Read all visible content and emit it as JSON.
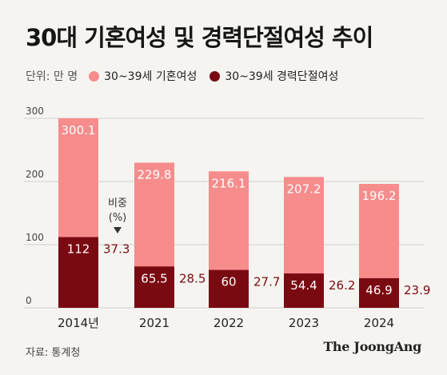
{
  "title": "30대 기혼여성 및 경력단절여성 추이",
  "legend": {
    "unit": "단위: 만 명",
    "series1": "30~39세 기혼여성",
    "series2": "30~39세 경력단절여성"
  },
  "colors": {
    "married": "#f68c8c",
    "discontinued": "#7a0a12",
    "ratio_text": "#7a0a12",
    "grid": "#cfcfcf",
    "bar_label_light": "#ffffff"
  },
  "ratio_annotation": "비중 (%)",
  "source": "자료: 통계청",
  "brand": "The JoongAng",
  "chart_data": {
    "type": "bar",
    "categories": [
      "2014년",
      "2021",
      "2022",
      "2023",
      "2024"
    ],
    "series": [
      {
        "name": "30~39세 기혼여성",
        "values": [
          300.1,
          229.8,
          216.1,
          207.2,
          196.2
        ]
      },
      {
        "name": "30~39세 경력단절여성",
        "values": [
          112,
          65.5,
          60,
          54.4,
          46.9
        ]
      }
    ],
    "ratio_labels": [
      "37.3",
      "28.5",
      "27.7",
      "26.2",
      "23.9"
    ],
    "y_ticks": [
      0,
      100,
      200,
      300
    ],
    "ylim": [
      0,
      330
    ],
    "grid": true
  }
}
